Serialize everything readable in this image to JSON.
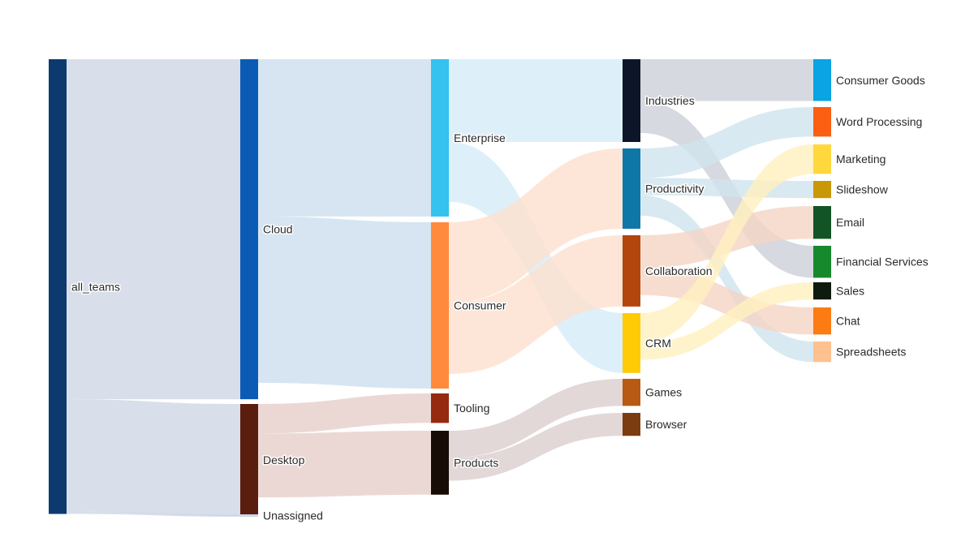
{
  "chart_data": {
    "type": "sankey",
    "nodes": [
      {
        "id": "all_teams",
        "label": "all_teams",
        "color": "#0d3a6e"
      },
      {
        "id": "cloud",
        "label": "Cloud",
        "color": "#0b5bb5"
      },
      {
        "id": "desktop",
        "label": "Desktop",
        "color": "#5a1e0e"
      },
      {
        "id": "unassigned",
        "label": "Unassigned",
        "color": "#cfd6e4"
      },
      {
        "id": "enterprise",
        "label": "Enterprise",
        "color": "#35c2ef"
      },
      {
        "id": "consumer",
        "label": "Consumer",
        "color": "#ff8a3d"
      },
      {
        "id": "tooling",
        "label": "Tooling",
        "color": "#962a10"
      },
      {
        "id": "products",
        "label": "Products",
        "color": "#180c06"
      },
      {
        "id": "industries",
        "label": "Industries",
        "color": "#0c1628"
      },
      {
        "id": "productivity",
        "label": "Productivity",
        "color": "#0f77a8"
      },
      {
        "id": "collaboration",
        "label": "Collaboration",
        "color": "#b3460d"
      },
      {
        "id": "crm",
        "label": "CRM",
        "color": "#ffcb05"
      },
      {
        "id": "games",
        "label": "Games",
        "color": "#b85a14"
      },
      {
        "id": "browser",
        "label": "Browser",
        "color": "#7b3c10"
      },
      {
        "id": "consumer_goods",
        "label": "Consumer Goods",
        "color": "#0aa3e3"
      },
      {
        "id": "word_processing",
        "label": "Word Processing",
        "color": "#fc5e12"
      },
      {
        "id": "marketing",
        "label": "Marketing",
        "color": "#ffd83d"
      },
      {
        "id": "slideshow",
        "label": "Slideshow",
        "color": "#c99806"
      },
      {
        "id": "email",
        "label": "Email",
        "color": "#125426"
      },
      {
        "id": "financial_services",
        "label": "Financial Services",
        "color": "#17892d"
      },
      {
        "id": "sales",
        "label": "Sales",
        "color": "#0d1a0e"
      },
      {
        "id": "chat",
        "label": "Chat",
        "color": "#fc7b12"
      },
      {
        "id": "spreadsheets",
        "label": "Spreadsheets",
        "color": "#ffc190"
      }
    ],
    "links": [
      {
        "source": "all_teams",
        "target": "cloud",
        "value": 41.5,
        "color": "#cfd8e6"
      },
      {
        "source": "all_teams",
        "target": "desktop",
        "value": 13.7,
        "color": "#cfd8e6"
      },
      {
        "source": "all_teams",
        "target": "unassigned",
        "value": 0.3,
        "color": "#cfd8e6"
      },
      {
        "source": "cloud",
        "target": "enterprise",
        "value": 19.2,
        "color": "#cddfee"
      },
      {
        "source": "cloud",
        "target": "consumer",
        "value": 20.3,
        "color": "#cddfee"
      },
      {
        "source": "desktop",
        "target": "tooling",
        "value": 3.6,
        "color": "#e6d0cc"
      },
      {
        "source": "desktop",
        "target": "products",
        "value": 7.8,
        "color": "#e6d0cc"
      },
      {
        "source": "enterprise",
        "target": "industries",
        "value": 10.1,
        "color": "#d6edf9"
      },
      {
        "source": "enterprise",
        "target": "crm",
        "value": 7.3,
        "color": "#d6edf9"
      },
      {
        "source": "consumer",
        "target": "productivity",
        "value": 9.8,
        "color": "#fde0d0"
      },
      {
        "source": "consumer",
        "target": "collaboration",
        "value": 8.7,
        "color": "#fde0d0"
      },
      {
        "source": "products",
        "target": "games",
        "value": 3.3,
        "color": "#dccfce"
      },
      {
        "source": "products",
        "target": "browser",
        "value": 2.8,
        "color": "#dccfce"
      },
      {
        "source": "industries",
        "target": "consumer_goods",
        "value": 5.1,
        "color": "#cdd1d8"
      },
      {
        "source": "industries",
        "target": "financial_services",
        "value": 3.9,
        "color": "#cdd1d8"
      },
      {
        "source": "productivity",
        "target": "word_processing",
        "value": 3.6,
        "color": "#cfe4ee"
      },
      {
        "source": "productivity",
        "target": "slideshow",
        "value": 2.1,
        "color": "#cfe4ee"
      },
      {
        "source": "productivity",
        "target": "spreadsheets",
        "value": 2.5,
        "color": "#cfe4ee"
      },
      {
        "source": "collaboration",
        "target": "email",
        "value": 4.0,
        "color": "#f4d6c6"
      },
      {
        "source": "collaboration",
        "target": "chat",
        "value": 3.3,
        "color": "#f4d6c6"
      },
      {
        "source": "crm",
        "target": "marketing",
        "value": 3.6,
        "color": "#fff0c0"
      },
      {
        "source": "crm",
        "target": "sales",
        "value": 2.1,
        "color": "#fff0c0"
      }
    ]
  }
}
